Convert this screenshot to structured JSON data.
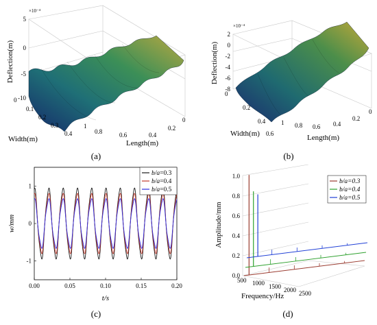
{
  "figure": {
    "panel_a": {
      "caption": "(a)",
      "scale_note": "×10⁻⁴",
      "zlabel": "Deflection(m)",
      "xlabel": "Width(m)",
      "ylabel": "Length(m)",
      "z_ticks": [
        "5",
        "0",
        "-5",
        "-10"
      ],
      "width_ticks": [
        "0",
        "0.1",
        "0.2",
        "0.3",
        "0.4"
      ],
      "length_ticks": [
        "0",
        "0.2",
        "0.4",
        "0.6",
        "0.8",
        "1"
      ]
    },
    "panel_b": {
      "caption": "(b)",
      "scale_note": "×10⁻⁴",
      "zlabel": "Deflection(m)",
      "xlabel": "Width(m)",
      "ylabel": "Length(m)",
      "z_ticks": [
        "2",
        "0",
        "-2",
        "-4",
        "-6",
        "-8"
      ],
      "width_ticks": [
        "0",
        "0.2",
        "0.4",
        "0.6"
      ],
      "length_ticks": [
        "0",
        "0.2",
        "0.4",
        "0.6",
        "0.8",
        "1"
      ]
    },
    "panel_c": {
      "caption": "(c)",
      "xlabel": "t/s",
      "ylabel": "w/mm"
    },
    "panel_d": {
      "caption": "(d)",
      "xlabel": "Frequency/Hz",
      "ylabel": "Amplitude/mm"
    },
    "legend": [
      {
        "prefix": "b/a",
        "value": "=0.3",
        "color": "#9a3a2e"
      },
      {
        "prefix": "b/a",
        "value": "=0.4",
        "color": "#2ca02c"
      },
      {
        "prefix": "b/a",
        "value": "=0.5",
        "color": "#1f3fd6"
      }
    ]
  },
  "chart_data": [
    {
      "panel": "a",
      "type": "surface",
      "title": "",
      "zlabel": "Deflection(m)",
      "xlabel": "Width(m)",
      "ylabel": "Length(m)",
      "zlim": [
        -10,
        5
      ],
      "z_scale": "1e-4",
      "xlim": [
        0,
        0.4
      ],
      "ylim": [
        0,
        1
      ],
      "grid": true
    },
    {
      "panel": "b",
      "type": "surface",
      "title": "",
      "zlabel": "Deflection(m)",
      "xlabel": "Width(m)",
      "ylabel": "Length(m)",
      "zlim": [
        -8,
        2
      ],
      "z_scale": "1e-4",
      "xlim": [
        0,
        0.6
      ],
      "ylim": [
        0,
        1
      ],
      "grid": true
    },
    {
      "panel": "c",
      "type": "line",
      "xlabel": "t/s",
      "ylabel": "w/mm",
      "xlim": [
        0,
        0.2
      ],
      "ylim": [
        -1.5,
        1.5
      ],
      "x_ticks": [
        0.0,
        0.05,
        0.1,
        0.15,
        0.2
      ],
      "y_ticks": [
        -1,
        0,
        1
      ],
      "x_tick_labels": [
        "0.00",
        "0.05",
        "0.10",
        "0.15",
        "0.20"
      ],
      "y_tick_labels": [
        "-1",
        "0",
        "1"
      ],
      "period": 0.02,
      "legend_position": "top-right",
      "series": [
        {
          "name": "b/a=0.3",
          "color": "#1a1a1a",
          "amplitude": 1.0
        },
        {
          "name": "b/a=0.4",
          "color": "#c0392b",
          "amplitude": 0.85
        },
        {
          "name": "b/a=0.5",
          "color": "#2a2ae0",
          "amplitude": 0.7
        }
      ]
    },
    {
      "panel": "d",
      "type": "waterfall",
      "xlabel": "Frequency/Hz",
      "ylabel": "Amplitude/mm",
      "x_tick_labels": [
        "500",
        "1000",
        "1500",
        "2000",
        "2500"
      ],
      "z_tick_labels": [
        "0.0",
        "0.2",
        "0.4",
        "0.6",
        "0.8",
        "1.0"
      ],
      "zlim": [
        0,
        1
      ],
      "legend_position": "top-right",
      "series": [
        {
          "name": "b/a=0.3",
          "color": "#9a3a2e",
          "peak_frequency": 500,
          "peak_amplitude": 1.0
        },
        {
          "name": "b/a=0.4",
          "color": "#2ca02c",
          "peak_frequency": 560,
          "peak_amplitude": 0.75
        },
        {
          "name": "b/a=0.5",
          "color": "#1f3fd6",
          "peak_frequency": 620,
          "peak_amplitude": 0.62
        }
      ]
    }
  ]
}
